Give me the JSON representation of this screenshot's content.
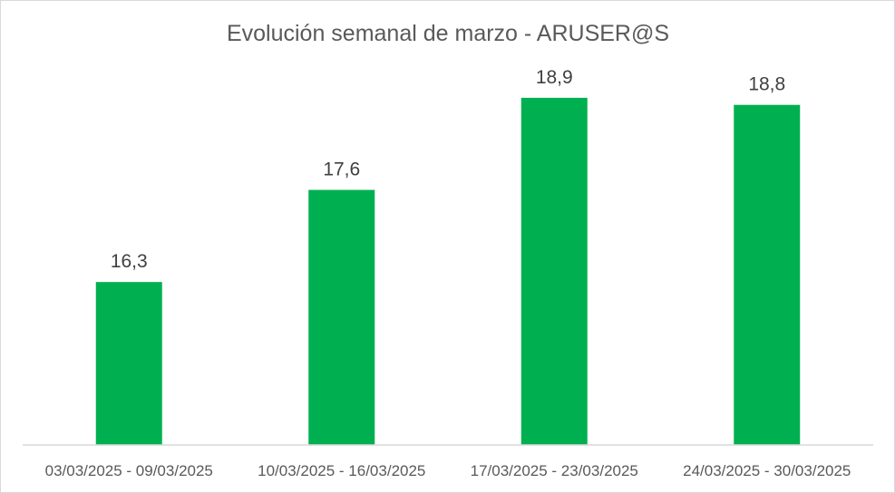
{
  "chart_data": {
    "type": "bar",
    "title": "Evolución semanal de marzo - ARUSER@S",
    "xlabel": "",
    "ylabel": "",
    "categories": [
      "03/03/2025 - 09/03/2025",
      "10/03/2025 - 16/03/2025",
      "17/03/2025 - 23/03/2025",
      "24/03/2025 - 30/03/2025"
    ],
    "values": [
      16.3,
      17.6,
      18.9,
      18.8
    ],
    "value_labels": [
      "16,3",
      "17,6",
      "18,9",
      "18,8"
    ],
    "ylim": [
      14.0,
      19.5
    ],
    "grid": false,
    "legend": "none",
    "colors": {
      "bar": "#00B050",
      "axis_line": "#D9D9D9",
      "title": "#595959",
      "labels": "#404040"
    }
  }
}
